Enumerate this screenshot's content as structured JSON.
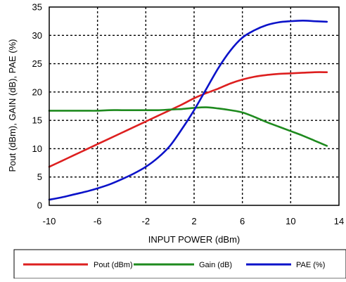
{
  "chart_data": {
    "type": "line",
    "title": "",
    "xlabel": "INPUT POWER (dBm)",
    "ylabel": "Pout (dBm), GAIN (dB), PAE (%)",
    "xlim": [
      -10,
      14
    ],
    "ylim": [
      0,
      35
    ],
    "xticks": [
      -10,
      -6,
      -2,
      2,
      6,
      10,
      14
    ],
    "yticks": [
      0,
      5,
      10,
      15,
      20,
      25,
      30,
      35
    ],
    "grid": true,
    "legend_position": "bottom",
    "series": [
      {
        "name": "Pout (dBm)",
        "color": "#dd1f1f",
        "x": [
          -10,
          -9,
          -8,
          -7,
          -6,
          -5,
          -4,
          -3,
          -2,
          -1,
          0,
          1,
          2,
          3,
          4,
          5,
          6,
          7,
          8,
          9,
          10,
          11,
          12,
          13
        ],
        "y": [
          6.8,
          7.8,
          8.8,
          9.8,
          10.8,
          11.8,
          12.8,
          13.8,
          14.8,
          15.8,
          16.8,
          17.8,
          18.9,
          19.8,
          20.6,
          21.5,
          22.2,
          22.7,
          23.0,
          23.2,
          23.3,
          23.4,
          23.5,
          23.5
        ]
      },
      {
        "name": "Gain (dB)",
        "color": "#1e8a1e",
        "x": [
          -10,
          -9,
          -8,
          -7,
          -6,
          -5,
          -4,
          -3,
          -2,
          -1,
          0,
          1,
          2,
          3,
          4,
          5,
          6,
          7,
          8,
          9,
          10,
          11,
          12,
          13
        ],
        "y": [
          16.7,
          16.7,
          16.7,
          16.7,
          16.7,
          16.8,
          16.8,
          16.8,
          16.8,
          16.8,
          16.9,
          17.0,
          17.2,
          17.3,
          17.1,
          16.8,
          16.4,
          15.6,
          14.7,
          13.9,
          13.1,
          12.3,
          11.4,
          10.5
        ]
      },
      {
        "name": "PAE (%)",
        "color": "#0b12c9",
        "x": [
          -10,
          -9,
          -8,
          -7,
          -6,
          -5,
          -4,
          -3,
          -2,
          -1,
          0,
          1,
          2,
          3,
          4,
          5,
          6,
          7,
          8,
          9,
          10,
          11,
          12,
          13
        ],
        "y": [
          1.0,
          1.4,
          1.9,
          2.4,
          3.0,
          3.7,
          4.6,
          5.6,
          6.8,
          8.4,
          10.5,
          13.5,
          16.8,
          20.5,
          24.2,
          27.3,
          29.6,
          30.9,
          31.8,
          32.3,
          32.5,
          32.6,
          32.5,
          32.4
        ]
      }
    ]
  },
  "legend": {
    "items": [
      {
        "label": "Pout (dBm)",
        "color": "#dd1f1f"
      },
      {
        "label": "Gain (dB)",
        "color": "#1e8a1e"
      },
      {
        "label": "PAE (%)",
        "color": "#0b12c9"
      }
    ]
  }
}
